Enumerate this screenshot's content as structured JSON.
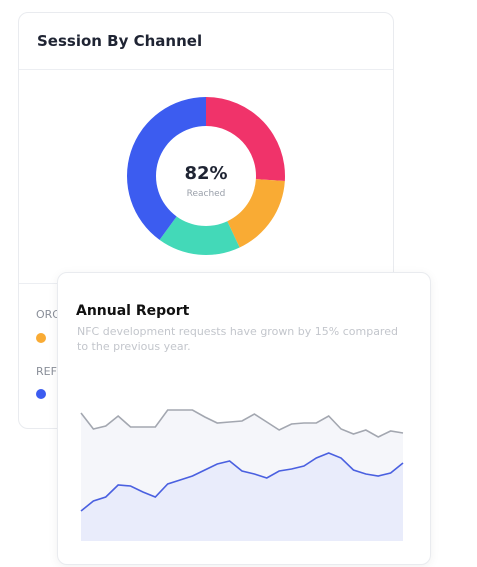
{
  "chart_data": [
    {
      "type": "donut",
      "title": "Session By Channel",
      "center_label": "82%",
      "center_sublabel": "Reached",
      "values": [
        26,
        17,
        17,
        40
      ],
      "colors": [
        "#f0336a",
        "#f9ab34",
        "#43d9b8",
        "#3c5cf0"
      ],
      "legend": [
        {
          "name": "ORG",
          "color": "#f9ab34"
        },
        {
          "name": "REF",
          "color": "#3c5cf0"
        }
      ]
    },
    {
      "type": "area",
      "title": "Annual Report",
      "subtitle": "NFC development requests have grown by 15% compared to the previous year.",
      "ylim": [
        0,
        145
      ],
      "series": [
        {
          "color": "#a3a7b0",
          "fill": "#f5f6fa",
          "values": [
            128,
            112,
            115,
            125,
            114,
            114,
            114,
            131,
            131,
            131,
            124,
            118,
            119,
            120,
            127,
            119,
            111,
            117,
            118,
            118,
            125,
            112,
            107,
            111,
            104,
            110,
            108
          ]
        },
        {
          "color": "#4a60e0",
          "fill": "#e9ecfb",
          "values": [
            30,
            40,
            44,
            56,
            55,
            49,
            44,
            57,
            61,
            65,
            71,
            77,
            80,
            70,
            67,
            63,
            70,
            72,
            75,
            83,
            88,
            83,
            71,
            67,
            65,
            68,
            78
          ]
        }
      ]
    }
  ]
}
